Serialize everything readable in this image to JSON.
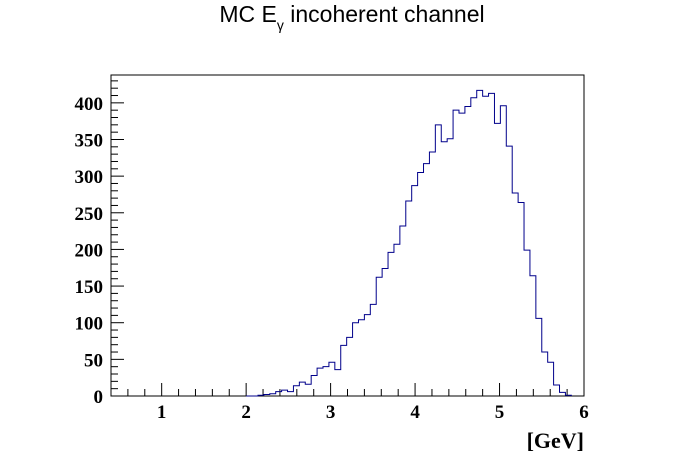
{
  "chart_data": {
    "type": "histogram",
    "title": {
      "prefix": "MC E",
      "subscript": "γ",
      "suffix": " incoherent channel"
    },
    "xlabel": "[GeV]",
    "ylabel": "",
    "xlim": [
      0.4,
      6.0
    ],
    "ylim": [
      0,
      438
    ],
    "x_ticks": [
      1,
      2,
      3,
      4,
      5,
      6
    ],
    "y_ticks": [
      0,
      50,
      100,
      150,
      200,
      250,
      300,
      350,
      400
    ],
    "grid": false,
    "line_color": "#00008b",
    "bin_start": 2.0,
    "bin_width": 0.07,
    "values": [
      0,
      0,
      1,
      2,
      3,
      6,
      8,
      6,
      14,
      19,
      16,
      28,
      38,
      40,
      46,
      36,
      69,
      80,
      100,
      104,
      111,
      125,
      162,
      174,
      196,
      207,
      232,
      266,
      287,
      305,
      317,
      333,
      370,
      347,
      351,
      390,
      386,
      395,
      407,
      417,
      409,
      413,
      372,
      396,
      341,
      277,
      264,
      199,
      164,
      106,
      60,
      46,
      15,
      5,
      1
    ]
  }
}
